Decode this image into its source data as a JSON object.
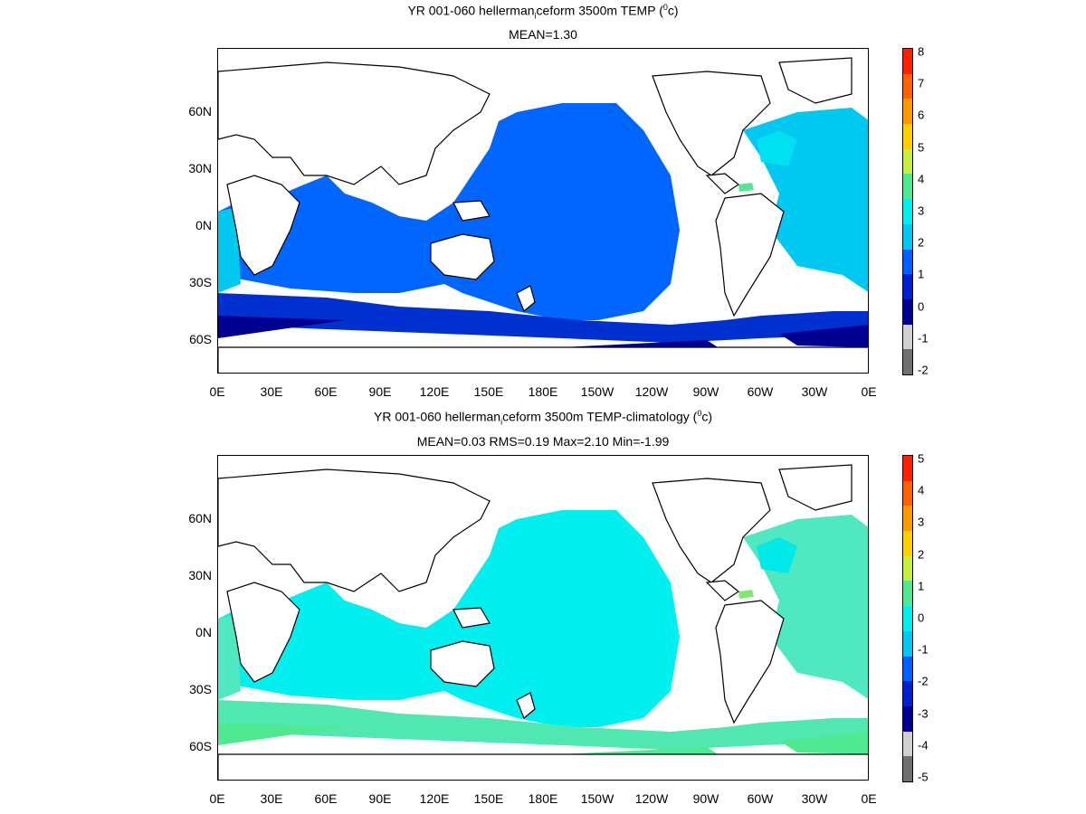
{
  "panels": [
    {
      "title_pre": "YR 001-060 hellerman",
      "title_sub": "i",
      "title_mid": "ceform 3500m TEMP (",
      "title_sup": "0",
      "title_post": "c)",
      "subtitle": "MEAN=1.30",
      "colorbar_ticks": [
        "8",
        "7",
        "6",
        "5",
        "4",
        "3",
        "2",
        "1",
        "0",
        "-1",
        "-2"
      ],
      "colorbar_colors": [
        "#ff2000",
        "#ff6000",
        "#ff9900",
        "#ffd000",
        "#c8ee40",
        "#50e890",
        "#00f0f0",
        "#00c8f0",
        "#0060ff",
        "#0020d0",
        "#000090",
        "#d0d0d0",
        "#707070"
      ],
      "palette": {
        "ocean_main": "#0066ff",
        "ocean_dark": "#0030d0",
        "ocean_deep": "#000090",
        "ocean_light": "#00c8f0",
        "ocean_cyan": "#00e0f0",
        "accent": "#50e890"
      }
    },
    {
      "title_pre": "YR 001-060 hellerman",
      "title_sub": "i",
      "title_mid": "ceform 3500m TEMP-climatology (",
      "title_sup": "0",
      "title_post": "c)",
      "subtitle": "MEAN=0.03   RMS=0.19   Max=2.10   Min=-1.99",
      "colorbar_ticks": [
        "5",
        "4",
        "3",
        "2",
        "1",
        "0",
        "-1",
        "-2",
        "-3",
        "-4",
        "-5"
      ],
      "colorbar_colors": [
        "#ff2000",
        "#ff6000",
        "#ff9900",
        "#ffd000",
        "#c8ee40",
        "#50e890",
        "#00f0f0",
        "#00c8f0",
        "#0060ff",
        "#0020d0",
        "#000090",
        "#d0d0d0",
        "#707070"
      ],
      "palette": {
        "ocean_main": "#00f0f0",
        "ocean_dark": "#50e8b0",
        "ocean_deep": "#50e890",
        "ocean_light": "#50e8c0",
        "ocean_cyan": "#00e8e8",
        "accent": "#80e870"
      }
    }
  ],
  "lat_labels": [
    "60N",
    "30N",
    "0N",
    "30S",
    "60S"
  ],
  "lon_labels": [
    "0E",
    "30E",
    "60E",
    "90E",
    "120E",
    "150E",
    "180E",
    "150W",
    "120W",
    "90W",
    "60W",
    "30W",
    "0E"
  ]
}
